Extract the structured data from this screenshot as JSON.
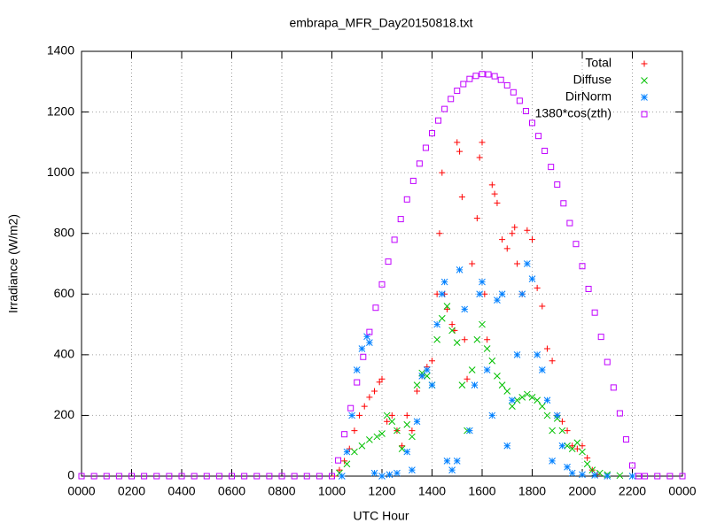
{
  "chart_data": {
    "type": "scatter",
    "title": "embrapa_MFR_Day20150818.txt",
    "xlabel": "UTC Hour",
    "ylabel": "Irradiance (W/m2)",
    "xlim": [
      0,
      24
    ],
    "ylim": [
      0,
      1400
    ],
    "xticks": [
      {
        "value": 0,
        "label": "0000"
      },
      {
        "value": 2,
        "label": "0200"
      },
      {
        "value": 4,
        "label": "0400"
      },
      {
        "value": 6,
        "label": "0600"
      },
      {
        "value": 8,
        "label": "0800"
      },
      {
        "value": 10,
        "label": "1000"
      },
      {
        "value": 12,
        "label": "1200"
      },
      {
        "value": 14,
        "label": "1400"
      },
      {
        "value": 16,
        "label": "1600"
      },
      {
        "value": 18,
        "label": "1800"
      },
      {
        "value": 20,
        "label": "2000"
      },
      {
        "value": 22,
        "label": "2200"
      },
      {
        "value": 24,
        "label": "0000"
      }
    ],
    "yticks": [
      0,
      200,
      400,
      600,
      800,
      1000,
      1200,
      1400
    ],
    "grid": true,
    "legend": "top-right",
    "series": [
      {
        "name": "Total",
        "color": "#ff0000",
        "marker": "plus",
        "x": [
          10.1,
          10.3,
          10.5,
          10.7,
          10.9,
          11.1,
          11.3,
          11.5,
          11.7,
          11.9,
          12.0,
          12.2,
          12.4,
          12.6,
          12.8,
          13.0,
          13.2,
          13.4,
          13.6,
          13.8,
          14.0,
          14.2,
          14.3,
          14.4,
          14.5,
          14.6,
          14.8,
          14.9,
          15.0,
          15.1,
          15.2,
          15.3,
          15.4,
          15.6,
          15.8,
          15.9,
          16.0,
          16.1,
          16.2,
          16.4,
          16.5,
          16.6,
          16.8,
          17.0,
          17.2,
          17.3,
          17.4,
          17.6,
          17.8,
          18.0,
          18.2,
          18.4,
          18.6,
          18.8,
          19.0,
          19.2,
          19.4,
          19.6,
          19.8,
          20.0,
          20.2,
          20.4,
          20.6,
          21.0
        ],
        "values": [
          0,
          20,
          50,
          90,
          150,
          200,
          230,
          260,
          280,
          310,
          320,
          180,
          200,
          150,
          100,
          200,
          150,
          280,
          330,
          360,
          380,
          600,
          800,
          1000,
          600,
          550,
          500,
          480,
          1100,
          1070,
          920,
          450,
          320,
          700,
          850,
          1050,
          1100,
          600,
          450,
          960,
          930,
          900,
          780,
          750,
          800,
          820,
          700,
          600,
          810,
          780,
          620,
          560,
          420,
          380,
          200,
          180,
          150,
          100,
          90,
          100,
          60,
          20,
          5,
          0
        ]
      },
      {
        "name": "Diffuse",
        "color": "#00c000",
        "marker": "cross",
        "x": [
          10.3,
          10.6,
          10.9,
          11.2,
          11.5,
          11.8,
          12.0,
          12.2,
          12.4,
          12.6,
          12.8,
          13.0,
          13.2,
          13.4,
          13.6,
          13.8,
          14.0,
          14.2,
          14.4,
          14.6,
          14.8,
          15.0,
          15.2,
          15.4,
          15.6,
          15.8,
          16.0,
          16.2,
          16.4,
          16.6,
          16.8,
          17.0,
          17.2,
          17.4,
          17.6,
          17.8,
          18.0,
          18.2,
          18.4,
          18.6,
          18.8,
          19.0,
          19.2,
          19.4,
          19.6,
          19.8,
          20.0,
          20.2,
          20.4,
          20.7,
          21.0,
          21.5
        ],
        "values": [
          10,
          40,
          80,
          100,
          120,
          130,
          140,
          200,
          180,
          150,
          90,
          170,
          130,
          300,
          340,
          330,
          300,
          450,
          520,
          560,
          480,
          440,
          300,
          150,
          350,
          450,
          500,
          420,
          380,
          330,
          300,
          280,
          230,
          250,
          260,
          270,
          260,
          250,
          230,
          200,
          150,
          190,
          150,
          100,
          90,
          110,
          80,
          40,
          20,
          10,
          5,
          2
        ]
      },
      {
        "name": "DirNorm",
        "color": "#0080ff",
        "marker": "star",
        "x": [
          10.4,
          10.6,
          10.8,
          11.0,
          11.2,
          11.4,
          11.5,
          11.7,
          12.0,
          12.3,
          12.6,
          13.0,
          13.2,
          13.4,
          13.6,
          13.8,
          14.0,
          14.2,
          14.4,
          14.5,
          14.6,
          14.8,
          15.0,
          15.1,
          15.3,
          15.5,
          15.7,
          15.9,
          16.0,
          16.2,
          16.4,
          16.6,
          16.8,
          17.0,
          17.2,
          17.4,
          17.6,
          17.8,
          18.0,
          18.2,
          18.4,
          18.6,
          18.8,
          19.0,
          19.2,
          19.4,
          19.6,
          20.0,
          20.5,
          21.0,
          22.0
        ],
        "values": [
          0,
          80,
          200,
          350,
          420,
          460,
          440,
          10,
          0,
          5,
          10,
          80,
          20,
          180,
          330,
          350,
          300,
          500,
          600,
          640,
          50,
          20,
          50,
          680,
          550,
          150,
          300,
          600,
          640,
          350,
          200,
          580,
          600,
          100,
          250,
          400,
          600,
          700,
          650,
          400,
          350,
          250,
          50,
          200,
          100,
          30,
          10,
          5,
          3,
          0,
          0
        ]
      },
      {
        "name": "1380*cos(zth)",
        "color": "#c000ff",
        "marker": "square",
        "x": [
          0,
          0.5,
          1,
          1.5,
          2,
          2.5,
          3,
          3.5,
          4,
          4.5,
          5,
          5.5,
          6,
          6.5,
          7,
          7.5,
          8,
          8.5,
          9,
          9.5,
          10,
          10.25,
          10.5,
          10.75,
          11,
          11.25,
          11.5,
          11.75,
          12,
          12.25,
          12.5,
          12.75,
          13,
          13.25,
          13.5,
          13.75,
          14,
          14.25,
          14.5,
          14.75,
          15,
          15.25,
          15.5,
          15.75,
          16,
          16.25,
          16.5,
          16.75,
          17,
          17.25,
          17.5,
          17.75,
          18,
          18.25,
          18.5,
          18.75,
          19,
          19.25,
          19.5,
          19.75,
          20,
          20.25,
          20.5,
          20.75,
          21,
          21.25,
          21.5,
          21.75,
          22,
          22.25,
          22.5,
          23,
          23.5,
          24
        ],
        "values": [
          0,
          0,
          0,
          0,
          0,
          0,
          0,
          0,
          0,
          0,
          0,
          0,
          0,
          0,
          0,
          0,
          0,
          0,
          0,
          0,
          0,
          52,
          138,
          224,
          309,
          393,
          475,
          555,
          632,
          707,
          779,
          847,
          912,
          973,
          1030,
          1082,
          1130,
          1172,
          1210,
          1243,
          1270,
          1292,
          1309,
          1319,
          1325,
          1324,
          1318,
          1306,
          1288,
          1265,
          1237,
          1203,
          1164,
          1121,
          1072,
          1019,
          961,
          899,
          834,
          765,
          692,
          617,
          539,
          459,
          376,
          292,
          207,
          121,
          35,
          0,
          0,
          0,
          0,
          0
        ]
      }
    ]
  }
}
